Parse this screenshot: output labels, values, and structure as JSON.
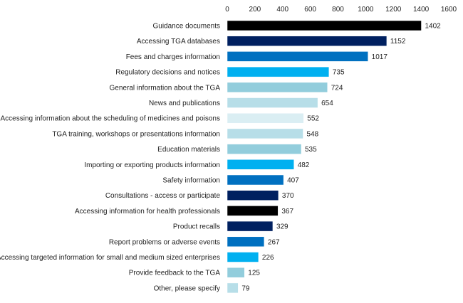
{
  "chart_data": {
    "type": "bar",
    "orientation": "horizontal",
    "title": "",
    "xlabel": "",
    "ylabel": "",
    "xlim": [
      0,
      1600
    ],
    "x_ticks": [
      0,
      200,
      400,
      600,
      800,
      1000,
      1200,
      1400,
      1600
    ],
    "x_axis_position": "top",
    "grid": false,
    "data_labels": true,
    "categories": [
      "Guidance documents",
      "Accessing TGA databases",
      "Fees and charges information",
      "Regulatory decisions and notices",
      "General information about the TGA",
      "News and publications",
      "Accessing information about the scheduling of medicines and poisons",
      "TGA training, workshops or presentations information",
      "Education materials",
      "Importing or exporting products information",
      "Safety information",
      "Consultations - access or participate",
      "Accessing information for health professionals",
      "Product recalls",
      "Report problems or adverse events",
      "Accessing targeted information for small and medium sized enterprises",
      "Provide feedback to the TGA",
      "Other, please specify"
    ],
    "values": [
      1402,
      1152,
      1017,
      735,
      724,
      654,
      552,
      548,
      535,
      482,
      407,
      370,
      367,
      329,
      267,
      226,
      125,
      79
    ],
    "colors": [
      "#000000",
      "#002060",
      "#0070C0",
      "#00B0F0",
      "#92CDDC",
      "#B7DEE8",
      "#DAEEF3",
      "#B7DEE8",
      "#92CDDC",
      "#00B0F0",
      "#0070C0",
      "#002060",
      "#000000",
      "#002060",
      "#0070C0",
      "#00B0F0",
      "#92CDDC",
      "#B7DEE8"
    ]
  }
}
